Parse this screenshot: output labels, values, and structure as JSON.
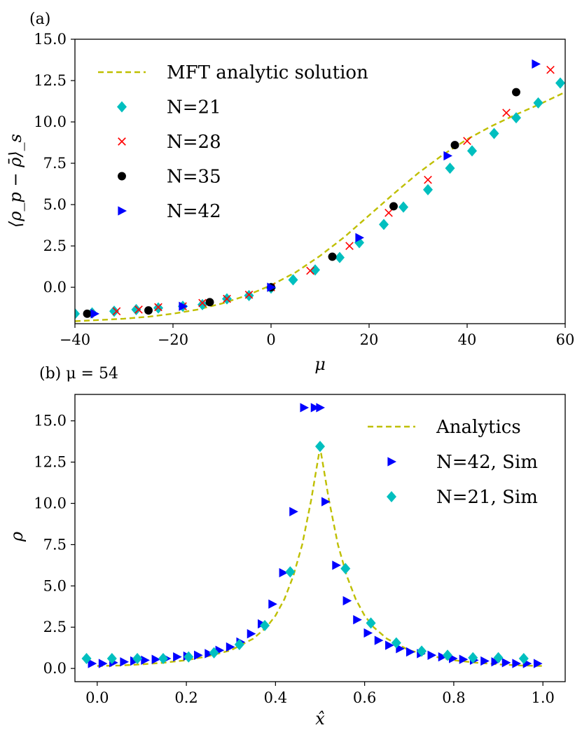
{
  "chart_data": [
    {
      "type": "scatter",
      "panel_label": "(a)",
      "xlabel": "μ",
      "ylabel": "⟨ρ_p − ρ̄⟩_s",
      "xlim": [
        -40,
        60
      ],
      "ylim": [
        -2.2,
        15.0
      ],
      "xticks": [
        -40,
        -20,
        0,
        20,
        40,
        60
      ],
      "xtick_labels": [
        "−40",
        "−20",
        "0",
        "20",
        "40",
        "60"
      ],
      "yticks": [
        0,
        2.5,
        5,
        7.5,
        10,
        12.5,
        15
      ],
      "ytick_labels": [
        "0.0",
        "2.5",
        "5.0",
        "7.5",
        "10.0",
        "12.5",
        "15.0"
      ],
      "grid": false,
      "legend_position": "upper-left",
      "series": [
        {
          "name": "MFT analytic solution",
          "kind": "line",
          "style": "dashed",
          "color": "#bfbf00",
          "x": [
            -40,
            -35,
            -30,
            -25,
            -20,
            -15,
            -10,
            -5,
            0,
            5,
            10,
            15,
            20,
            25,
            30,
            35,
            40,
            45,
            50,
            55,
            60
          ],
          "y": [
            -2.05,
            -1.98,
            -1.9,
            -1.78,
            -1.6,
            -1.35,
            -0.98,
            -0.5,
            0.12,
            0.9,
            1.9,
            3.05,
            4.35,
            5.65,
            6.9,
            8.0,
            8.95,
            9.75,
            10.45,
            11.1,
            11.8
          ]
        },
        {
          "name": "N=21",
          "kind": "marker",
          "marker": "diamond",
          "color": "#00bfbf",
          "x": [
            -40,
            -36.5,
            -32,
            -27.5,
            -23,
            -18,
            -14,
            -9,
            -4.5,
            0,
            4.5,
            9,
            14,
            18,
            23,
            27,
            32,
            36.5,
            41,
            45.5,
            50,
            54.5,
            59
          ],
          "y": [
            -1.6,
            -1.55,
            -1.45,
            -1.35,
            -1.25,
            -1.15,
            -1.05,
            -0.7,
            -0.5,
            -0.05,
            0.45,
            1.05,
            1.8,
            2.7,
            3.8,
            4.85,
            5.9,
            7.2,
            8.25,
            9.3,
            10.25,
            11.15,
            12.35
          ]
        },
        {
          "name": "N=28",
          "kind": "marker",
          "marker": "x",
          "color": "#ff0000",
          "x": [
            -37,
            -31.5,
            -27,
            -23,
            -18,
            -14,
            -9,
            -4.5,
            0,
            8,
            16,
            24,
            32,
            40,
            48,
            57
          ],
          "y": [
            -1.6,
            -1.45,
            -1.35,
            -1.2,
            -1.15,
            -0.95,
            -0.7,
            -0.45,
            0.0,
            1.0,
            2.5,
            4.5,
            6.5,
            8.85,
            10.55,
            13.15
          ]
        },
        {
          "name": "N=35",
          "kind": "marker",
          "marker": "circle",
          "color": "#000000",
          "x": [
            -37.5,
            -25,
            -12.5,
            0,
            12.5,
            25,
            37.5,
            50
          ],
          "y": [
            -1.6,
            -1.4,
            -0.9,
            0.0,
            1.85,
            4.9,
            8.6,
            11.8
          ]
        },
        {
          "name": "N=42",
          "kind": "marker",
          "marker": "triangle-right",
          "color": "#0000ff",
          "x": [
            -36,
            -18,
            0,
            18,
            36,
            54
          ],
          "y": [
            -1.6,
            -1.15,
            0.0,
            3.0,
            7.95,
            13.5
          ]
        }
      ]
    },
    {
      "type": "scatter",
      "panel_label": "(b) μ = 54",
      "xlabel": "x̂",
      "ylabel": "ρ",
      "xlim": [
        -0.05,
        1.05
      ],
      "ylim": [
        -0.8,
        16.6
      ],
      "xticks": [
        0,
        0.2,
        0.4,
        0.6,
        0.8,
        1.0
      ],
      "xtick_labels": [
        "0.0",
        "0.2",
        "0.4",
        "0.6",
        "0.8",
        "1.0"
      ],
      "yticks": [
        0,
        2.5,
        5,
        7.5,
        10,
        12.5,
        15
      ],
      "ytick_labels": [
        "0.0",
        "2.5",
        "5.0",
        "7.5",
        "10.0",
        "12.5",
        "15.0"
      ],
      "grid": false,
      "legend_position": "upper-right",
      "series": [
        {
          "name": "Analytics",
          "kind": "line",
          "style": "dashed",
          "color": "#bfbf00",
          "x": [
            0.0,
            0.05,
            0.1,
            0.15,
            0.2,
            0.25,
            0.3,
            0.35,
            0.38,
            0.4,
            0.42,
            0.44,
            0.46,
            0.48,
            0.5,
            0.52,
            0.54,
            0.56,
            0.58,
            0.6,
            0.62,
            0.65,
            0.7,
            0.75,
            0.8,
            0.85,
            0.9,
            0.95,
            1.0
          ],
          "y": [
            0.15,
            0.18,
            0.25,
            0.35,
            0.5,
            0.75,
            1.1,
            1.8,
            2.5,
            3.2,
            4.2,
            5.6,
            7.5,
            10.2,
            13.4,
            10.2,
            7.5,
            5.6,
            4.2,
            3.2,
            2.5,
            1.8,
            1.1,
            0.75,
            0.5,
            0.35,
            0.25,
            0.18,
            0.15
          ]
        },
        {
          "name": "N=42, Sim",
          "kind": "marker",
          "marker": "triangle-right",
          "color": "#0000ff",
          "x": [
            -0.012,
            0.012,
            0.036,
            0.06,
            0.083,
            0.107,
            0.131,
            0.155,
            0.179,
            0.202,
            0.226,
            0.25,
            0.274,
            0.298,
            0.321,
            0.345,
            0.369,
            0.393,
            0.417,
            0.44,
            0.464,
            0.488,
            0.5,
            0.512,
            0.536,
            0.56,
            0.583,
            0.607,
            0.631,
            0.655,
            0.679,
            0.702,
            0.726,
            0.75,
            0.774,
            0.798,
            0.821,
            0.845,
            0.869,
            0.893,
            0.917,
            0.94,
            0.964,
            0.988
          ],
          "y": [
            0.3,
            0.3,
            0.35,
            0.4,
            0.45,
            0.5,
            0.55,
            0.6,
            0.7,
            0.75,
            0.8,
            0.9,
            1.1,
            1.3,
            1.6,
            2.1,
            2.7,
            3.9,
            5.8,
            9.5,
            15.8,
            15.8,
            15.8,
            10.1,
            6.25,
            4.1,
            2.95,
            2.15,
            1.7,
            1.4,
            1.2,
            1.0,
            0.9,
            0.8,
            0.7,
            0.6,
            0.55,
            0.5,
            0.45,
            0.4,
            0.35,
            0.3,
            0.3,
            0.3
          ]
        },
        {
          "name": "N=21, Sim",
          "kind": "marker",
          "marker": "diamond",
          "color": "#00bfbf",
          "x": [
            -0.024,
            0.033,
            0.09,
            0.148,
            0.205,
            0.262,
            0.319,
            0.376,
            0.433,
            0.5,
            0.557,
            0.614,
            0.671,
            0.728,
            0.786,
            0.843,
            0.9,
            0.957
          ],
          "y": [
            0.6,
            0.6,
            0.6,
            0.6,
            0.7,
            0.95,
            1.45,
            2.6,
            5.85,
            13.45,
            6.05,
            2.75,
            1.55,
            1.05,
            0.8,
            0.65,
            0.65,
            0.6
          ]
        }
      ]
    }
  ]
}
